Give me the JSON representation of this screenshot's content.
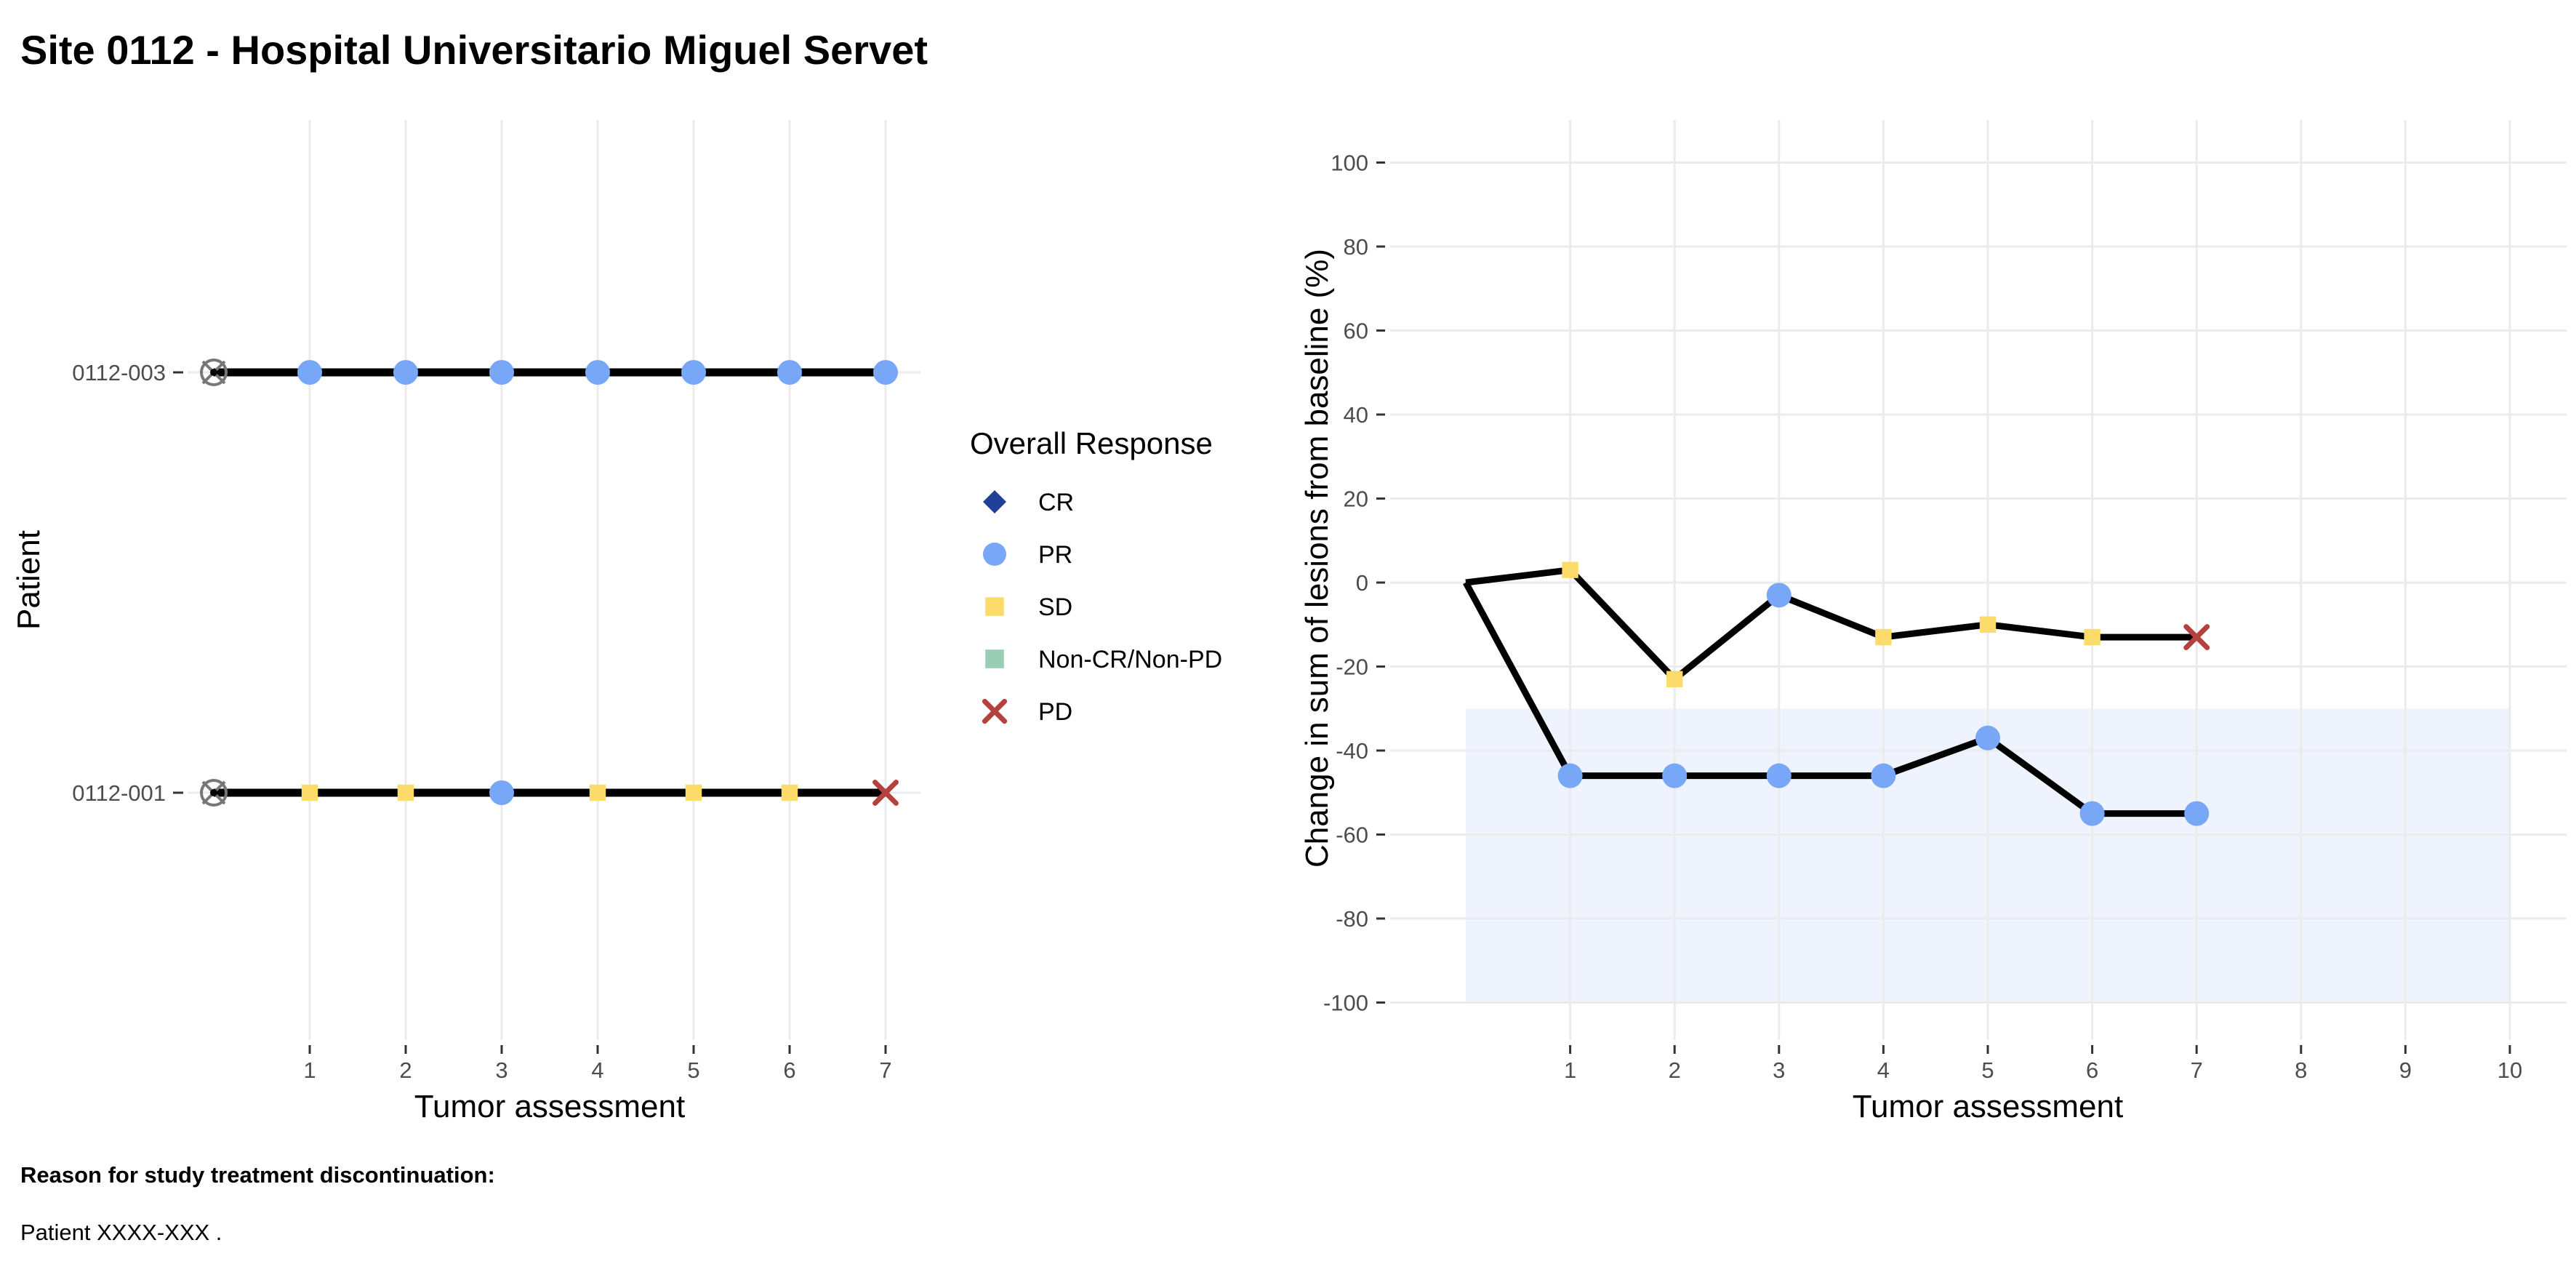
{
  "title": "Site 0112 - Hospital Universitario Miguel Servet",
  "footer": {
    "heading": "Reason for study treatment discontinuation:",
    "text": "Patient XXXX-XXX ."
  },
  "colors": {
    "CR": "#1f3f99",
    "PR": "#79a7f7",
    "SD": "#fcdb6b",
    "Non-CR/Non-PD": "#99cdb6",
    "PD": "#b5413f",
    "line": "#000000",
    "grid": "#ebebeb",
    "response_band": "#eef3fd"
  },
  "legend": {
    "title": "Overall Response",
    "items": [
      {
        "label": "CR",
        "shape": "diamond"
      },
      {
        "label": "PR",
        "shape": "circle"
      },
      {
        "label": "SD",
        "shape": "square"
      },
      {
        "label": "Non-CR/Non-PD",
        "shape": "square"
      },
      {
        "label": "PD",
        "shape": "cross"
      }
    ]
  },
  "chart_data": [
    {
      "type": "scatter",
      "name": "swimmer",
      "xlabel": "Tumor assessment",
      "ylabel": "Patient",
      "x_ticks": [
        1,
        2,
        3,
        4,
        5,
        6,
        7
      ],
      "xlim": [
        0,
        7
      ],
      "grid": true,
      "baseline_marker": "circle-cross",
      "patients": [
        {
          "id": "0112-003",
          "responses": [
            "PR",
            "PR",
            "PR",
            "PR",
            "PR",
            "PR",
            "PR"
          ]
        },
        {
          "id": "0112-001",
          "responses": [
            "SD",
            "SD",
            "PR",
            "SD",
            "SD",
            "SD",
            "PD"
          ]
        }
      ]
    },
    {
      "type": "line",
      "name": "spider",
      "xlabel": "Tumor assessment",
      "ylabel": "Change in sum of lesions from baseline (%)",
      "x_ticks": [
        1,
        2,
        3,
        4,
        5,
        6,
        7,
        8,
        9,
        10
      ],
      "xlim": [
        0,
        10
      ],
      "y_ticks": [
        100,
        80,
        60,
        40,
        20,
        0,
        -20,
        -40,
        -60,
        -80,
        -100
      ],
      "ylim": [
        -100,
        100
      ],
      "grid": true,
      "shaded_band": {
        "from": -100,
        "to": -30
      },
      "series": [
        {
          "x": [
            0,
            1,
            2,
            3,
            4,
            5,
            6,
            7
          ],
          "y": [
            0,
            3,
            -23,
            -3,
            -13,
            -10,
            -13,
            -13
          ],
          "responses": [
            null,
            "SD",
            "SD",
            "PR",
            "SD",
            "SD",
            "SD",
            "PD"
          ]
        },
        {
          "x": [
            0,
            1,
            2,
            3,
            4,
            5,
            6,
            7
          ],
          "y": [
            0,
            -46,
            -46,
            -46,
            -46,
            -37,
            -55,
            -55
          ],
          "responses": [
            null,
            "PR",
            "PR",
            "PR",
            "PR",
            "PR",
            "PR",
            "PR"
          ]
        }
      ]
    }
  ]
}
